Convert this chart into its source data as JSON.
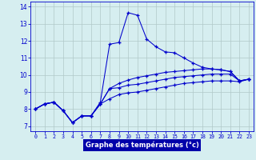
{
  "xlabel": "Graphe des températures (°c)",
  "background_color": "#d6eef0",
  "grid_color": "#b0c8c8",
  "line_color": "#0000cc",
  "label_bg_color": "#0000aa",
  "label_text_color": "#ffffff",
  "ylim": [
    6.7,
    14.3
  ],
  "xlim": [
    -0.5,
    23.5
  ],
  "yticks": [
    7,
    8,
    9,
    10,
    11,
    12,
    13,
    14
  ],
  "xticks": [
    0,
    1,
    2,
    3,
    4,
    5,
    6,
    7,
    8,
    9,
    10,
    11,
    12,
    13,
    14,
    15,
    16,
    17,
    18,
    19,
    20,
    21,
    22,
    23
  ],
  "line1_x": [
    0,
    1,
    2,
    3,
    4,
    5,
    6,
    7,
    8,
    9,
    10,
    11,
    12,
    13,
    14,
    15,
    16,
    17,
    18,
    19,
    20,
    21,
    22,
    23
  ],
  "line1_y": [
    8.0,
    8.3,
    8.4,
    7.9,
    7.2,
    7.6,
    7.6,
    8.3,
    8.6,
    8.85,
    8.95,
    9.0,
    9.1,
    9.2,
    9.3,
    9.4,
    9.5,
    9.55,
    9.6,
    9.65,
    9.65,
    9.65,
    9.6,
    9.75
  ],
  "line2_x": [
    0,
    1,
    2,
    3,
    4,
    5,
    6,
    7,
    8,
    9,
    10,
    11,
    12,
    13,
    14,
    15,
    16,
    17,
    18,
    19,
    20,
    21,
    22,
    23
  ],
  "line2_y": [
    8.0,
    8.3,
    8.4,
    7.9,
    7.2,
    7.6,
    7.6,
    8.3,
    9.2,
    9.25,
    9.4,
    9.45,
    9.55,
    9.65,
    9.75,
    9.85,
    9.9,
    9.95,
    10.0,
    10.05,
    10.05,
    10.05,
    9.65,
    9.75
  ],
  "line3_x": [
    0,
    1,
    2,
    3,
    4,
    5,
    6,
    7,
    8,
    9,
    10,
    11,
    12,
    13,
    14,
    15,
    16,
    17,
    18,
    19,
    20,
    21,
    22,
    23
  ],
  "line3_y": [
    8.0,
    8.3,
    8.4,
    7.9,
    7.2,
    7.6,
    7.6,
    8.3,
    9.2,
    9.5,
    9.7,
    9.85,
    9.95,
    10.05,
    10.15,
    10.2,
    10.25,
    10.3,
    10.35,
    10.35,
    10.3,
    10.2,
    9.65,
    9.75
  ],
  "line4_x": [
    0,
    1,
    2,
    3,
    4,
    5,
    6,
    7,
    8,
    9,
    10,
    11,
    12,
    13,
    14,
    15,
    16,
    17,
    18,
    19,
    20,
    21,
    22,
    23
  ],
  "line4_y": [
    8.0,
    8.3,
    8.4,
    7.9,
    7.2,
    7.6,
    7.6,
    8.4,
    11.8,
    11.9,
    13.65,
    13.5,
    12.1,
    11.65,
    11.35,
    11.3,
    11.0,
    10.7,
    10.45,
    10.35,
    10.3,
    10.2,
    9.65,
    9.75
  ]
}
